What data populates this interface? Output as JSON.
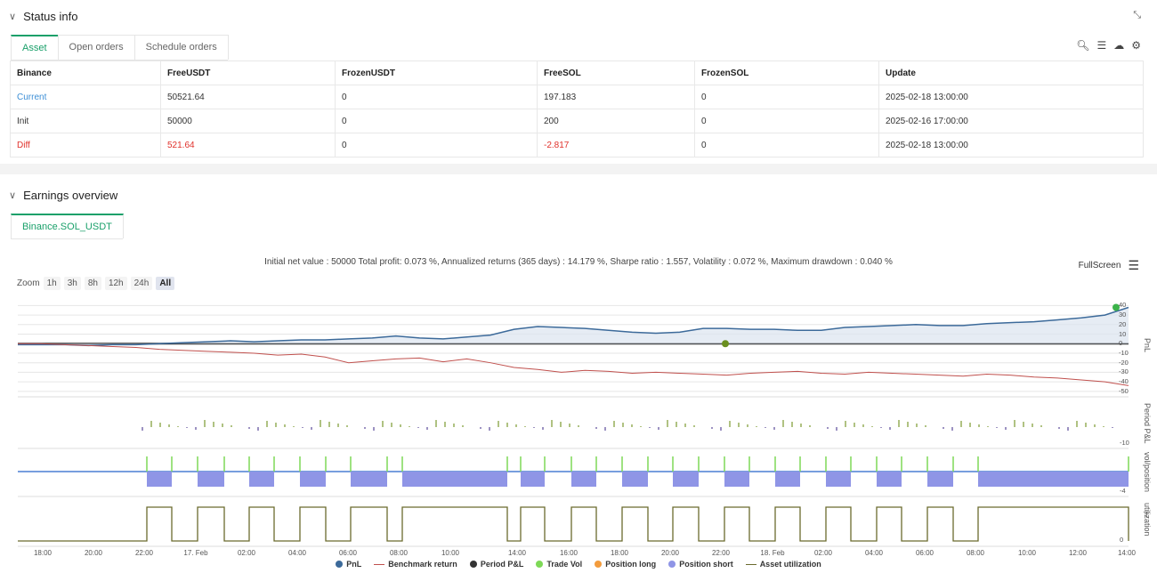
{
  "status": {
    "title": "Status info",
    "tabs": [
      "Asset",
      "Open orders",
      "Schedule orders"
    ],
    "columns": [
      "Binance",
      "FreeUSDT",
      "FrozenUSDT",
      "FreeSOL",
      "FrozenSOL",
      "Update"
    ],
    "rows": [
      {
        "label": "Current",
        "free_usdt": "50521.64",
        "frozen_usdt": "0",
        "free_sol": "197.183",
        "frozen_sol": "0",
        "update": "2025-02-18 13:00:00"
      },
      {
        "label": "Init",
        "free_usdt": "50000",
        "frozen_usdt": "0",
        "free_sol": "200",
        "frozen_sol": "0",
        "update": "2025-02-16 17:00:00"
      },
      {
        "label": "Diff",
        "free_usdt": "521.64",
        "frozen_usdt": "0",
        "free_sol": "-2.817",
        "frozen_sol": "0",
        "update": "2025-02-18 13:00:00"
      }
    ]
  },
  "earnings": {
    "title": "Earnings overview",
    "tab": "Binance.SOL_USDT",
    "summary": "Initial net value : 50000 Total profit: 0.073 %, Annualized returns (365 days) : 14.179 %, Sharpe ratio : 1.557, Volatility : 0.072 %, Maximum drawdown : 0.040 %",
    "fullscreen": "FullScreen",
    "zoom_label": "Zoom",
    "zoom_options": [
      "1h",
      "3h",
      "8h",
      "12h",
      "24h",
      "All"
    ],
    "zoom_selected": "All"
  },
  "colors": {
    "accent": "#1aa06a",
    "current": "#3d8fd6",
    "diff": "#e0312b",
    "pnl": "#3c6a9a",
    "benchmark": "#c0504d",
    "period": "#333333",
    "trade_vol": "#7ed957",
    "pos_long": "#f39c3d",
    "pos_short": "#8f95e6",
    "util": "#6b6b2e"
  },
  "chart_data": {
    "type": "line",
    "x_ticks": [
      "18:00",
      "20:00",
      "22:00",
      "17. Feb",
      "02:00",
      "04:00",
      "06:00",
      "08:00",
      "10:00",
      "14:00",
      "16:00",
      "18:00",
      "20:00",
      "22:00",
      "18. Feb",
      "02:00",
      "04:00",
      "06:00",
      "08:00",
      "10:00",
      "12:00",
      "14:00"
    ],
    "pnl_axis": {
      "title": "PnL",
      "ticks": [
        "40",
        "30",
        "20",
        "10",
        "0",
        "-10",
        "-20",
        "-30",
        "-40",
        "-50"
      ]
    },
    "period_axis": {
      "title": "Period P&L",
      "ticks": [
        "-10"
      ]
    },
    "vol_axis": {
      "title": "vol/position",
      "ticks": [
        "-4"
      ]
    },
    "util_axis": {
      "title": "utilization",
      "ticks": [
        "0"
      ]
    },
    "series": [
      {
        "name": "PnL",
        "values": [
          -1,
          -1,
          -1,
          -2,
          -1,
          -1,
          0,
          1,
          2,
          3,
          2,
          3,
          4,
          4,
          5,
          6,
          8,
          6,
          5,
          7,
          9,
          15,
          18,
          17,
          16,
          14,
          12,
          11,
          12,
          16,
          16,
          15,
          15,
          14,
          14,
          17,
          18,
          19,
          20,
          19,
          19,
          21,
          22,
          23,
          25,
          27,
          30,
          38
        ]
      },
      {
        "name": "Benchmark return",
        "values": [
          0,
          0,
          -1,
          -2,
          -3,
          -4,
          -6,
          -7,
          -8,
          -9,
          -10,
          -12,
          -11,
          -14,
          -20,
          -18,
          -16,
          -15,
          -19,
          -16,
          -20,
          -25,
          -27,
          -30,
          -28,
          -29,
          -31,
          -30,
          -31,
          -32,
          -33,
          -31,
          -30,
          -29,
          -31,
          -32,
          -30,
          -31,
          -32,
          -33,
          -34,
          -32,
          -33,
          -35,
          -36,
          -38,
          -40,
          -44
        ]
      }
    ],
    "legend": [
      "PnL",
      "Benchmark return",
      "Period P&L",
      "Trade Vol",
      "Position long",
      "Position short",
      "Asset utilization"
    ]
  }
}
